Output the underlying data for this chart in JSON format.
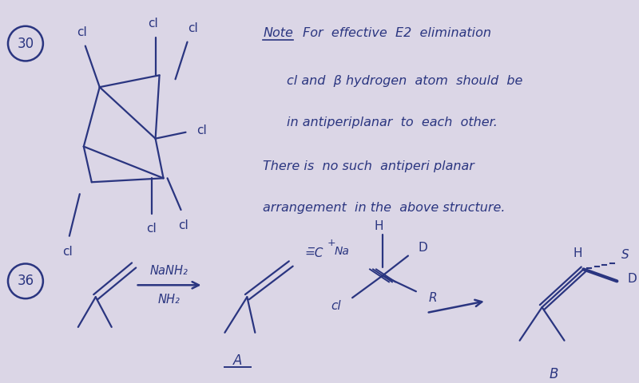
{
  "bg_color": "#dbd6e6",
  "ink_color": "#2a3580",
  "note_line1": "Note  For  effective  E2  elimination",
  "note_line2": "cl and  β hydrogen  atom  should  be",
  "note_line3": "in antiperiplanar  to  each  other.",
  "note_line4": "There is  no such  antiperi planar",
  "note_line5": "arrangement  in the  above structure."
}
